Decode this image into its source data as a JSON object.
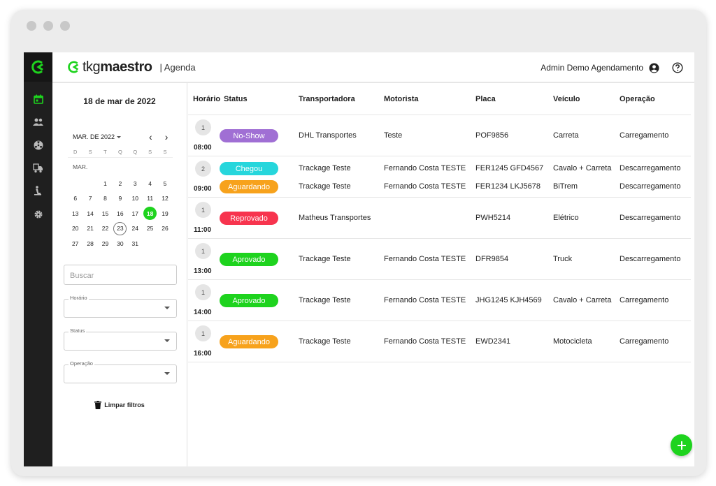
{
  "window": {
    "controls": [
      "close",
      "minimize",
      "maximize"
    ]
  },
  "brand": {
    "name_light": "tkg",
    "name_bold": "maestro",
    "section": "| Agenda",
    "accent": "#1ed31e"
  },
  "user": {
    "name": "Admin Demo Agendamento",
    "icon": "account-circle-icon",
    "help_icon": "help-circle-icon"
  },
  "rail": {
    "items": [
      "calendar-icon",
      "people-icon",
      "radioactive-icon",
      "truck-icon",
      "person-luggage-icon",
      "settings-icon"
    ]
  },
  "filters": {
    "date_title": "18 de mar de 2022",
    "month_label": "MAR. DE 2022",
    "weekdays": [
      "D",
      "S",
      "T",
      "Q",
      "Q",
      "S",
      "S"
    ],
    "calendar_month": "MAR.",
    "weeks": [
      [
        "",
        "",
        "1",
        "2",
        "3",
        "4",
        "5"
      ],
      [
        "6",
        "7",
        "8",
        "9",
        "10",
        "11",
        "12"
      ],
      [
        "13",
        "14",
        "15",
        "16",
        "17",
        "18",
        "19"
      ],
      [
        "20",
        "21",
        "22",
        "23",
        "24",
        "25",
        "26"
      ],
      [
        "27",
        "28",
        "29",
        "30",
        "31",
        "",
        ""
      ]
    ],
    "selected_day": "18",
    "today": "23",
    "search_placeholder": "Buscar",
    "horario_label": "Horário",
    "status_label": "Status",
    "operacao_label": "Operação",
    "clear_label": "Limpar filtros"
  },
  "table": {
    "headers": {
      "horario": "Horário",
      "status": "Status",
      "transportadora": "Transportadora",
      "motorista": "Motorista",
      "placa": "Placa",
      "veiculo": "Veículo",
      "operacao": "Operação"
    },
    "groups": [
      {
        "count": "1",
        "time": "08:00",
        "rows": [
          {
            "status": "No-Show",
            "color": "#a06fd4",
            "transportadora": "DHL Transportes",
            "motorista": "Teste",
            "placa": "POF9856",
            "veiculo": "Carreta",
            "operacao": "Carregamento"
          }
        ]
      },
      {
        "count": "2",
        "time": "09:00",
        "rows": [
          {
            "status": "Chegou",
            "color": "#26d6dc",
            "transportadora": "Trackage Teste",
            "motorista": "Fernando Costa TESTE",
            "placa": "FER1245 GFD4567",
            "veiculo": "Cavalo + Carreta",
            "operacao": "Descarregamento"
          },
          {
            "status": "Aguardando",
            "color": "#f7a21c",
            "transportadora": "Trackage Teste",
            "motorista": "Fernando Costa TESTE",
            "placa": "FER1234 LKJ5678",
            "veiculo": "BiTrem",
            "operacao": "Descarregamento"
          }
        ]
      },
      {
        "count": "1",
        "time": "11:00",
        "rows": [
          {
            "status": "Reprovado",
            "color": "#f7344e",
            "transportadora": "Matheus Transportes",
            "motorista": "",
            "placa": "PWH5214",
            "veiculo": "Elétrico",
            "operacao": "Descarregamento"
          }
        ]
      },
      {
        "count": "1",
        "time": "13:00",
        "rows": [
          {
            "status": "Aprovado",
            "color": "#1ed31e",
            "transportadora": "Trackage Teste",
            "motorista": "Fernando Costa TESTE",
            "placa": "DFR9854",
            "veiculo": "Truck",
            "operacao": "Descarregamento"
          }
        ]
      },
      {
        "count": "1",
        "time": "14:00",
        "rows": [
          {
            "status": "Aprovado",
            "color": "#1ed31e",
            "transportadora": "Trackage Teste",
            "motorista": "Fernando Costa TESTE",
            "placa": "JHG1245 KJH4569",
            "veiculo": "Cavalo + Carreta",
            "operacao": "Carregamento"
          }
        ]
      },
      {
        "count": "1",
        "time": "16:00",
        "rows": [
          {
            "status": "Aguardando",
            "color": "#f7a21c",
            "transportadora": "Trackage Teste",
            "motorista": "Fernando Costa TESTE",
            "placa": "EWD2341",
            "veiculo": "Motocicleta",
            "operacao": "Carregamento"
          }
        ]
      }
    ]
  },
  "fab": {
    "icon": "plus-icon"
  }
}
